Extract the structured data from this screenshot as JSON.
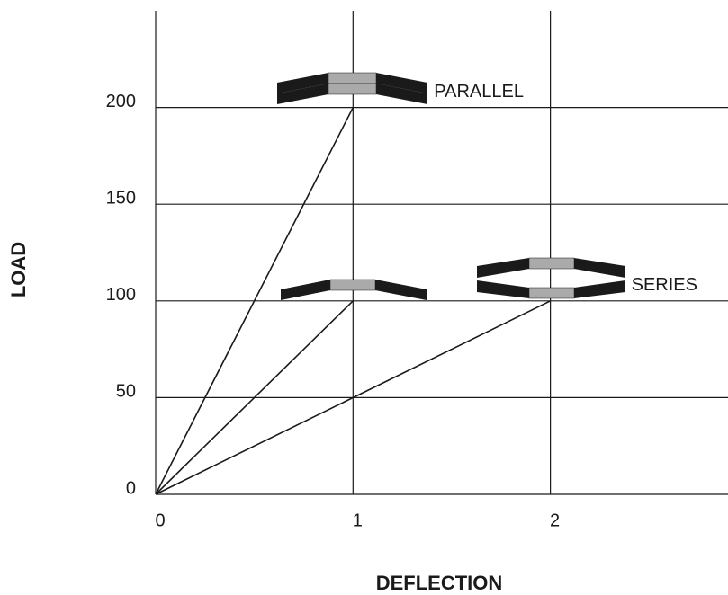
{
  "chart_data": {
    "type": "line",
    "x_label": "DEFLECTION",
    "y_label": "LOAD",
    "xlim": [
      0,
      2.9
    ],
    "ylim": [
      0,
      250
    ],
    "xticks": [
      0,
      1,
      2
    ],
    "yticks": [
      0,
      50,
      100,
      150,
      200
    ],
    "grid": true,
    "series": [
      {
        "name": "PARALLEL",
        "color": "#1a1a1a",
        "x": [
          0,
          1
        ],
        "values": [
          0,
          200
        ]
      },
      {
        "color": "#1a1a1a",
        "x": [
          0,
          1
        ],
        "values": [
          0,
          100
        ]
      },
      {
        "name": "SERIES",
        "color": "#1a1a1a",
        "x": [
          0,
          2
        ],
        "values": [
          0,
          100
        ]
      }
    ]
  }
}
